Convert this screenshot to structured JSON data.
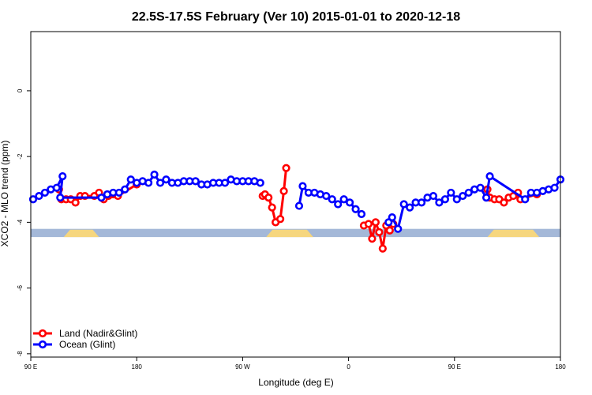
{
  "chart_data": {
    "type": "line",
    "title": "22.5S-17.5S February (Ver 10)   2015-01-01 to 2020-12-18",
    "xlabel": "Longitude (deg E)",
    "ylabel": "XCO2 - MLO trend (ppm)",
    "xlim": [
      90,
      540
    ],
    "ylim": [
      -8.1,
      1.8
    ],
    "x_ticks": [
      {
        "value": 90,
        "label": "90 E"
      },
      {
        "value": 180,
        "label": "180"
      },
      {
        "value": 270,
        "label": "90 W"
      },
      {
        "value": 360,
        "label": "0"
      },
      {
        "value": 450,
        "label": "90 E"
      },
      {
        "value": 540,
        "label": "180"
      }
    ],
    "y_ticks": [
      {
        "value": 0,
        "label": "0"
      },
      {
        "value": -2,
        "label": "-2"
      },
      {
        "value": -4,
        "label": "-4"
      },
      {
        "value": -6,
        "label": "-6"
      },
      {
        "value": -8,
        "label": "-8"
      }
    ],
    "grid": false,
    "legend_position": "bottom-left",
    "surface_band": {
      "y_range": [
        -4.45,
        -4.2
      ],
      "ocean_color": "#a4b8d8",
      "land_color": "#f6d67e",
      "land_segments": [
        [
          118,
          148
        ],
        [
          290,
          330
        ],
        [
          478,
          522
        ]
      ]
    },
    "series": [
      {
        "name": "Land (Nadir&Glint)",
        "color": "#ff0000",
        "segments": [
          [
            [
              114,
              -3.0
            ],
            [
              116,
              -3.3
            ],
            [
              120,
              -3.3
            ],
            [
              124,
              -3.3
            ],
            [
              128,
              -3.4
            ],
            [
              132,
              -3.2
            ],
            [
              136,
              -3.2
            ],
            [
              144,
              -3.2
            ],
            [
              148,
              -3.1
            ],
            [
              152,
              -3.3
            ],
            [
              156,
              -3.2
            ],
            [
              160,
              -3.15
            ],
            [
              164,
              -3.2
            ],
            [
              180,
              -2.85
            ]
          ],
          [
            [
              287,
              -3.2
            ],
            [
              289,
              -3.15
            ],
            [
              292,
              -3.25
            ],
            [
              295,
              -3.55
            ],
            [
              298,
              -4.0
            ],
            [
              302,
              -3.9
            ],
            [
              305,
              -3.05
            ],
            [
              307,
              -2.35
            ]
          ],
          [
            [
              373,
              -4.1
            ],
            [
              377,
              -4.05
            ],
            [
              380,
              -4.5
            ],
            [
              383,
              -4.0
            ],
            [
              386,
              -4.3
            ],
            [
              389,
              -4.8
            ],
            [
              392,
              -4.1
            ],
            [
              395,
              -4.25
            ],
            [
              398,
              -4.05
            ]
          ],
          [
            [
              478,
              -3.0
            ],
            [
              480,
              -3.25
            ],
            [
              484,
              -3.3
            ],
            [
              488,
              -3.3
            ],
            [
              492,
              -3.4
            ],
            [
              496,
              -3.25
            ],
            [
              500,
              -3.2
            ],
            [
              504,
              -3.1
            ],
            [
              506,
              -3.3
            ],
            [
              520,
              -3.15
            ]
          ]
        ]
      },
      {
        "name": "Ocean (Glint)",
        "color": "#0000ff",
        "segments": [
          [
            [
              92,
              -3.3
            ],
            [
              97,
              -3.2
            ],
            [
              102,
              -3.1
            ],
            [
              107,
              -3.0
            ],
            [
              112,
              -2.95
            ],
            [
              117,
              -2.6
            ],
            [
              115,
              -3.25
            ],
            [
              150,
              -3.25
            ],
            [
              155,
              -3.15
            ],
            [
              160,
              -3.1
            ],
            [
              165,
              -3.1
            ],
            [
              170,
              -3.0
            ],
            [
              175,
              -2.7
            ],
            [
              180,
              -2.8
            ],
            [
              185,
              -2.75
            ],
            [
              190,
              -2.8
            ],
            [
              195,
              -2.55
            ],
            [
              200,
              -2.8
            ],
            [
              205,
              -2.7
            ],
            [
              210,
              -2.8
            ],
            [
              215,
              -2.8
            ],
            [
              220,
              -2.75
            ],
            [
              225,
              -2.75
            ],
            [
              230,
              -2.75
            ],
            [
              235,
              -2.85
            ],
            [
              240,
              -2.85
            ],
            [
              245,
              -2.8
            ],
            [
              250,
              -2.8
            ],
            [
              255,
              -2.8
            ],
            [
              260,
              -2.7
            ],
            [
              265,
              -2.75
            ],
            [
              270,
              -2.75
            ],
            [
              275,
              -2.75
            ],
            [
              280,
              -2.75
            ],
            [
              285,
              -2.8
            ]
          ],
          [
            [
              318,
              -3.5
            ],
            [
              321,
              -2.9
            ],
            [
              326,
              -3.1
            ],
            [
              331,
              -3.1
            ],
            [
              336,
              -3.15
            ],
            [
              341,
              -3.2
            ],
            [
              346,
              -3.3
            ],
            [
              351,
              -3.45
            ],
            [
              356,
              -3.3
            ],
            [
              361,
              -3.4
            ],
            [
              366,
              -3.6
            ],
            [
              371,
              -3.75
            ]
          ],
          [
            [
              394,
              -4.0
            ],
            [
              397,
              -3.85
            ],
            [
              402,
              -4.2
            ],
            [
              407,
              -3.45
            ],
            [
              412,
              -3.55
            ],
            [
              417,
              -3.4
            ],
            [
              422,
              -3.4
            ],
            [
              427,
              -3.25
            ],
            [
              432,
              -3.2
            ],
            [
              437,
              -3.4
            ],
            [
              442,
              -3.3
            ],
            [
              447,
              -3.1
            ],
            [
              452,
              -3.3
            ],
            [
              457,
              -3.2
            ],
            [
              462,
              -3.1
            ],
            [
              467,
              -3.0
            ],
            [
              472,
              -2.95
            ],
            [
              477,
              -3.25
            ],
            [
              480,
              -2.6
            ],
            [
              510,
              -3.3
            ],
            [
              515,
              -3.1
            ],
            [
              520,
              -3.1
            ],
            [
              525,
              -3.05
            ],
            [
              530,
              -3.0
            ],
            [
              535,
              -2.95
            ],
            [
              540,
              -2.7
            ]
          ]
        ]
      }
    ]
  }
}
